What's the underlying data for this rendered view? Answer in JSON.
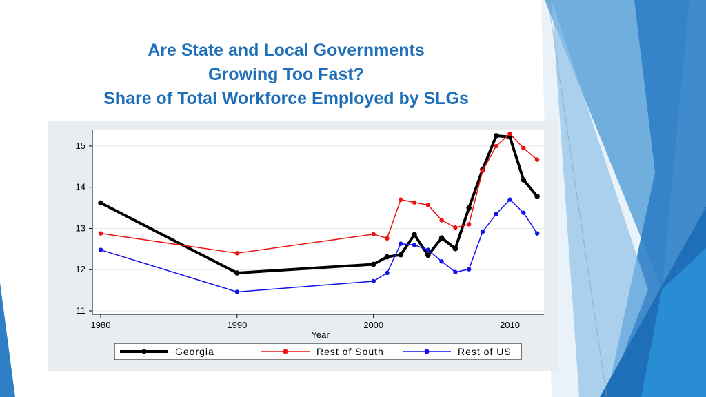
{
  "slide": {
    "title_line1": "Are State and Local Governments",
    "title_line2": "Growing Too Fast?",
    "title_line3": "Share of Total Workforce Employed by SLGs",
    "accent_color": "#1f6fb8"
  },
  "chart_data": {
    "type": "line",
    "title": "",
    "xlabel": "Year",
    "ylabel": "",
    "xlim": [
      1980,
      2012.5
    ],
    "ylim": [
      11,
      15.4
    ],
    "xticks": [
      1980,
      1990,
      2000,
      2010
    ],
    "yticks": [
      11,
      12,
      13,
      14,
      15
    ],
    "grid": true,
    "legend_position": "bottom",
    "series": [
      {
        "name": "Georgia",
        "color": "#000000",
        "x": [
          1980,
          1990,
          2000,
          2001,
          2002,
          2003,
          2004,
          2005,
          2006,
          2007,
          2008,
          2009,
          2010,
          2011,
          2012
        ],
        "y": [
          13.62,
          11.92,
          12.13,
          12.31,
          12.36,
          12.85,
          12.35,
          12.77,
          12.51,
          13.5,
          14.43,
          15.25,
          15.22,
          14.18,
          13.78
        ]
      },
      {
        "name": "Rest of South",
        "color": "#ee1111",
        "x": [
          1980,
          1990,
          2000,
          2001,
          2002,
          2003,
          2004,
          2005,
          2006,
          2007,
          2008,
          2009,
          2010,
          2011,
          2012
        ],
        "y": [
          12.88,
          12.4,
          12.86,
          12.76,
          13.7,
          13.63,
          13.57,
          13.2,
          13.02,
          13.1,
          14.4,
          15.0,
          15.3,
          14.95,
          14.67
        ]
      },
      {
        "name": "Rest of US",
        "color": "#1111ee",
        "x": [
          1980,
          1990,
          2000,
          2001,
          2002,
          2003,
          2004,
          2005,
          2006,
          2007,
          2008,
          2009,
          2010,
          2011,
          2012
        ],
        "y": [
          12.48,
          11.46,
          11.72,
          11.92,
          12.63,
          12.6,
          12.48,
          12.2,
          11.94,
          12.01,
          12.92,
          13.35,
          13.7,
          13.38,
          12.88
        ]
      }
    ]
  }
}
